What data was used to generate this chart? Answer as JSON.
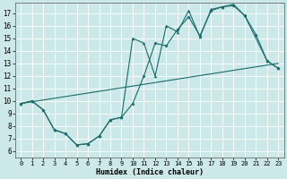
{
  "title": "",
  "xlabel": "Humidex (Indice chaleur)",
  "bg_color": "#cce8e8",
  "grid_color": "#b0d0d0",
  "line_color": "#1a6b6b",
  "xlim": [
    -0.5,
    23.5
  ],
  "ylim": [
    5.5,
    17.8
  ],
  "xticks": [
    0,
    1,
    2,
    3,
    4,
    5,
    6,
    7,
    8,
    9,
    10,
    11,
    12,
    13,
    14,
    15,
    16,
    17,
    18,
    19,
    20,
    21,
    22,
    23
  ],
  "yticks": [
    6,
    7,
    8,
    9,
    10,
    11,
    12,
    13,
    14,
    15,
    16,
    17
  ],
  "line_dia_x": [
    0,
    1,
    2,
    3,
    4,
    5,
    6,
    7,
    8,
    9,
    10,
    11,
    12,
    13,
    14,
    15,
    16,
    17,
    18,
    19,
    20,
    21,
    22,
    23
  ],
  "line_dia_y": [
    9.8,
    10.0,
    9.3,
    7.7,
    7.4,
    6.5,
    6.6,
    7.2,
    8.5,
    8.7,
    9.8,
    12.0,
    14.6,
    14.4,
    15.7,
    16.7,
    15.2,
    17.2,
    17.5,
    17.6,
    16.8,
    15.3,
    13.2,
    12.6
  ],
  "line_tri_x": [
    0,
    1,
    2,
    3,
    4,
    5,
    6,
    7,
    8,
    9,
    10,
    11,
    12,
    13,
    14,
    15,
    16,
    17,
    18,
    19,
    20,
    22,
    23
  ],
  "line_tri_y": [
    9.8,
    10.0,
    9.3,
    7.7,
    7.4,
    6.5,
    6.6,
    7.2,
    8.5,
    8.7,
    15.0,
    14.6,
    12.0,
    16.0,
    15.5,
    17.2,
    15.1,
    17.3,
    17.5,
    17.7,
    16.8,
    13.2,
    12.6
  ],
  "trend_x": [
    0,
    23
  ],
  "trend_y": [
    9.8,
    13.0
  ]
}
